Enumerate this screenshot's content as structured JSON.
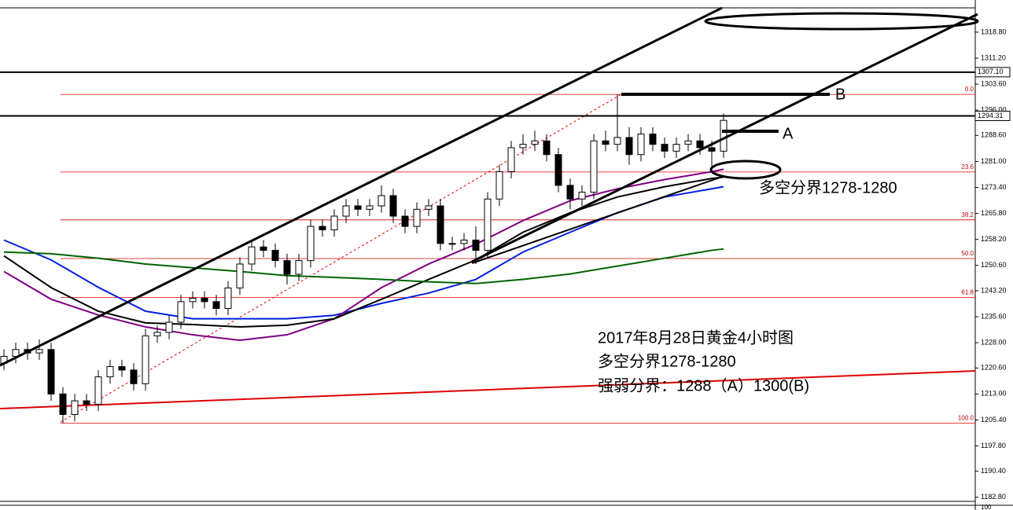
{
  "chart_data": {
    "type": "candlestick",
    "title": "2017年8月28日黄金4小时图",
    "annotations": [
      "多空分界1278-1280",
      "强弱分界：1288（A）1300(B)"
    ],
    "zone_label": "多空分界1278-1280",
    "level_labels": [
      "A",
      "B"
    ],
    "ylim": [
      1181.6,
      1325.9
    ],
    "yticks": [
      {
        "value": 1318.8,
        "label": "1318.80"
      },
      {
        "value": 1311.2,
        "label": "1311.20"
      },
      {
        "value": 1303.6,
        "label": "1303.60"
      },
      {
        "value": 1296,
        "label": "1296.00"
      },
      {
        "value": 1288.6,
        "label": "1288.60"
      },
      {
        "value": 1281,
        "label": "1281.00"
      },
      {
        "value": 1273.4,
        "label": "1273.40"
      },
      {
        "value": 1265.8,
        "label": "1265.80"
      },
      {
        "value": 1258.2,
        "label": "1258.20"
      },
      {
        "value": 1250.6,
        "label": "1250.60"
      },
      {
        "value": 1243.2,
        "label": "1243.20"
      },
      {
        "value": 1235.6,
        "label": "1235.60"
      },
      {
        "value": 1228,
        "label": "1228.00"
      },
      {
        "value": 1220.6,
        "label": "1220.60"
      },
      {
        "value": 1213,
        "label": "1213.00"
      },
      {
        "value": 1205.4,
        "label": "1205.40"
      },
      {
        "value": 1197.8,
        "label": "1197.80"
      },
      {
        "value": 1190.4,
        "label": "1190.40"
      },
      {
        "value": 1182.8,
        "label": "1182.80"
      }
    ],
    "price_lines": [
      {
        "value": 1307.1,
        "label": "1307.10"
      },
      {
        "value": 1294.31,
        "label": "1294.31"
      }
    ],
    "fibonacci": {
      "ratio_labels": [
        "0.0",
        "23.6",
        "38.2",
        "50.0",
        "61.8",
        "100.0"
      ],
      "prices": [
        1300.6,
        1277.9,
        1263.9,
        1252.6,
        1241.2,
        1204.5
      ],
      "color": "#e00000"
    },
    "sub_panel_label": "100",
    "candles": {
      "open": [
        1222,
        1224,
        1226,
        1225,
        1226,
        1213,
        1207,
        1211,
        1210,
        1218,
        1221,
        1220,
        1216,
        1230,
        1231,
        1234,
        1240,
        1241,
        1240,
        1238,
        1244,
        1251,
        1256,
        1255,
        1252,
        1248,
        1252,
        1262,
        1261,
        1265,
        1268,
        1267,
        1268,
        1271,
        1265,
        1262,
        1267,
        1268,
        1257,
        1257,
        1258,
        1255,
        1270,
        1278,
        1285,
        1286,
        1287,
        1283,
        1274,
        1270,
        1272,
        1287,
        1286,
        1288,
        1283,
        1289,
        1286,
        1284,
        1286,
        1287,
        1285,
        1284
      ],
      "high": [
        1226,
        1228,
        1228,
        1229,
        1228,
        1215,
        1213,
        1213,
        1220,
        1223,
        1223,
        1222,
        1232,
        1233,
        1236,
        1242,
        1243,
        1243,
        1242,
        1246,
        1253,
        1258,
        1258,
        1257,
        1254,
        1254,
        1264,
        1264,
        1267,
        1270,
        1270,
        1270,
        1274,
        1273,
        1267,
        1269,
        1270,
        1270,
        1259,
        1260,
        1262,
        1272,
        1280,
        1287,
        1289,
        1290,
        1289,
        1285,
        1276,
        1274,
        1289,
        1290,
        1300.6,
        1291,
        1291,
        1291,
        1288,
        1288,
        1289,
        1289,
        1287,
        1295
      ],
      "low": [
        1220,
        1222,
        1223,
        1223,
        1211,
        1204.5,
        1205,
        1208,
        1208,
        1216,
        1218,
        1214,
        1214,
        1228,
        1229,
        1232,
        1238,
        1238,
        1236,
        1236,
        1242,
        1249,
        1253,
        1250,
        1245,
        1246,
        1250,
        1259,
        1259,
        1263,
        1265,
        1265,
        1266,
        1263,
        1260,
        1260,
        1265,
        1255,
        1255,
        1255,
        1251,
        1253,
        1268,
        1276,
        1283,
        1284,
        1281,
        1272,
        1267,
        1268,
        1270,
        1284,
        1284,
        1280,
        1281,
        1284,
        1282,
        1282,
        1284,
        1283,
        1279,
        1282
      ],
      "close": [
        1224,
        1226,
        1225,
        1226,
        1213,
        1207,
        1211,
        1210,
        1218,
        1221,
        1220,
        1216,
        1230,
        1231,
        1234,
        1240,
        1241,
        1240,
        1238,
        1244,
        1251,
        1256,
        1255,
        1252,
        1248,
        1252,
        1262,
        1261,
        1265,
        1268,
        1267,
        1268,
        1271,
        1265,
        1262,
        1267,
        1268,
        1257,
        1257,
        1258,
        1255,
        1270,
        1278,
        1285,
        1286,
        1287,
        1283,
        1274,
        1270,
        1272,
        1287,
        1286,
        1288,
        1283,
        1289,
        1286,
        1284,
        1286,
        1287,
        1285,
        1284,
        1293
      ]
    },
    "ma_index": [
      0,
      4,
      8,
      12,
      16,
      20,
      24,
      28,
      32,
      36,
      40,
      44,
      48,
      52,
      56,
      60,
      61
    ],
    "moving_averages": [
      {
        "color": "#0020e0",
        "values": [
          1258,
          1252.2,
          1244.2,
          1237.2,
          1235,
          1235,
          1235,
          1236,
          1239.5,
          1242.5,
          1246.5,
          1254.5,
          1260.3,
          1266,
          1270.6,
          1273,
          1273.6
        ]
      },
      {
        "color": "#800080",
        "values": [
          1248.8,
          1240.7,
          1236.1,
          1232.6,
          1230.3,
          1228.7,
          1230.3,
          1235,
          1244.1,
          1251,
          1256.8,
          1263.7,
          1269.5,
          1273,
          1275.7,
          1278,
          1278.7
        ]
      },
      {
        "color": "#000000",
        "values": [
          1253.4,
          1244.1,
          1237.2,
          1233.8,
          1233.3,
          1232.6,
          1233.1,
          1235,
          1240.7,
          1246.5,
          1252.2,
          1260.3,
          1266,
          1270.6,
          1273.6,
          1276,
          1276.4
        ]
      },
      {
        "color": "#006400",
        "values": [
          1254.5,
          1254,
          1252.7,
          1251,
          1249.9,
          1248.8,
          1247.6,
          1247.1,
          1246.5,
          1245.8,
          1245.3,
          1246.5,
          1248.1,
          1250.4,
          1252.7,
          1255,
          1255.4
        ]
      }
    ]
  }
}
